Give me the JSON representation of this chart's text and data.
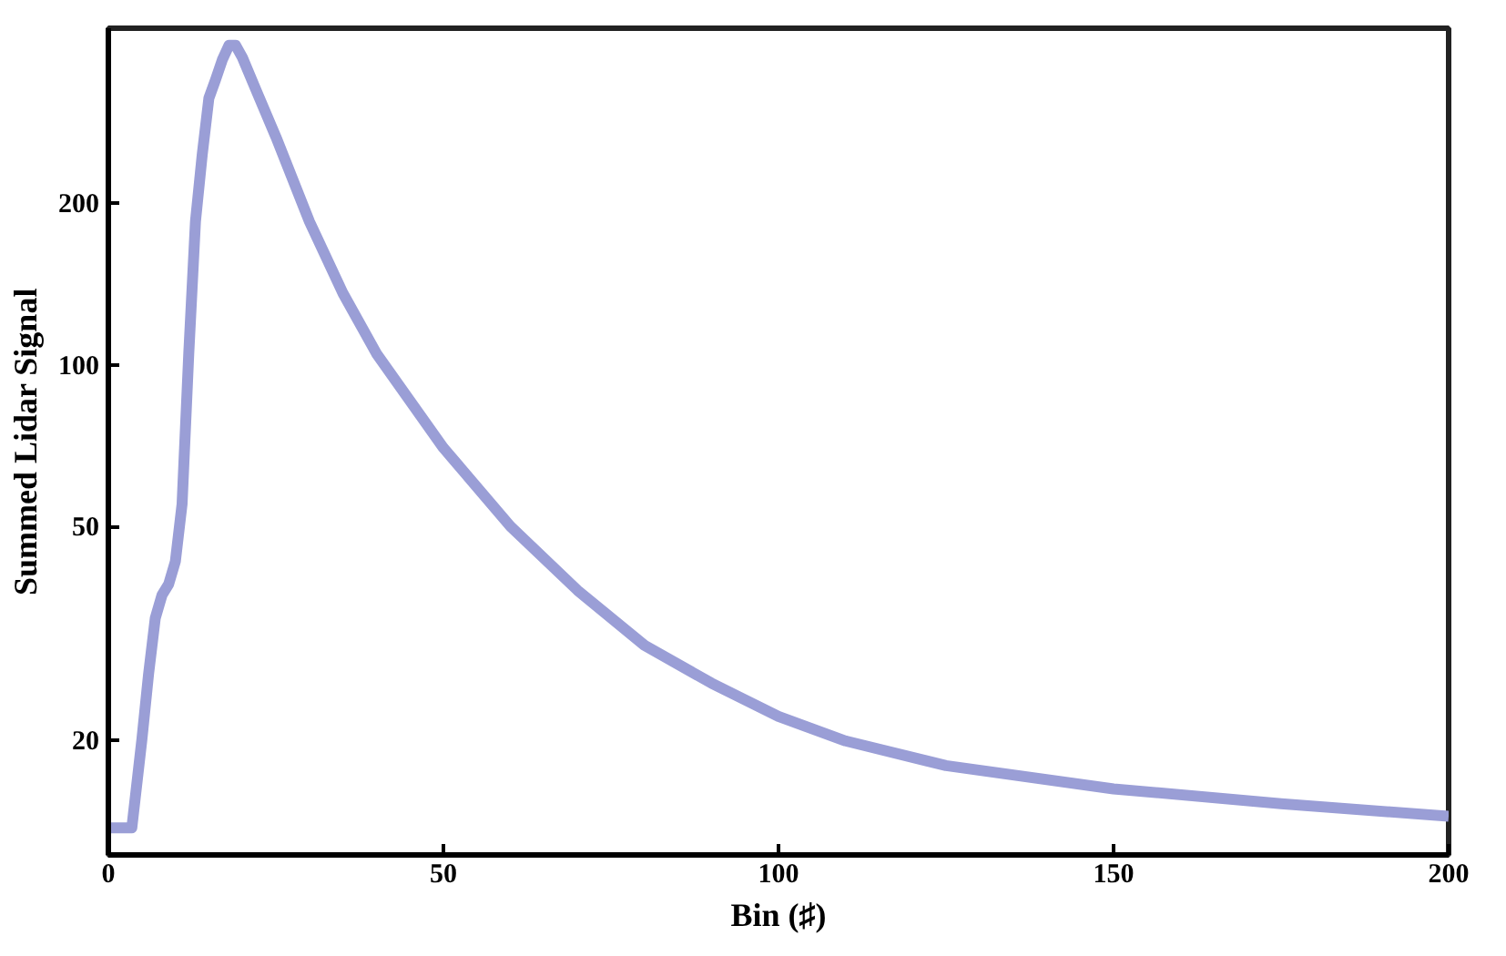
{
  "chart_data": {
    "type": "line",
    "xlabel": "Bin (♯)",
    "ylabel": "Summed Lidar Signal",
    "x": [
      0,
      3.5,
      5,
      6,
      7,
      8,
      9,
      10,
      11,
      12,
      13,
      14,
      15,
      16,
      17,
      18,
      19,
      20,
      22,
      25,
      30,
      35,
      40,
      50,
      60,
      70,
      80,
      90,
      100,
      110,
      125,
      150,
      175,
      200
    ],
    "series": [
      {
        "color": "#9a9ed6",
        "values": [
          13.7,
          13.7,
          20,
          26.5,
          33.7,
          37.2,
          39,
          43,
          55,
          105,
          185,
          246,
          314,
          340,
          370,
          394,
          394,
          374,
          326,
          266,
          185,
          136,
          105,
          70,
          50,
          38,
          30,
          25.5,
          22.1,
          19.9,
          17.9,
          16.2,
          15.2,
          14.4
        ]
      }
    ],
    "xlim": [
      0,
      200
    ],
    "ylim": [
      12.2,
      424
    ],
    "xticks": [
      0,
      50,
      100,
      150,
      200
    ],
    "yticks": [
      20,
      50,
      100,
      200
    ],
    "log": "y",
    "grid": false,
    "marker": "none",
    "line_style": "solid"
  }
}
